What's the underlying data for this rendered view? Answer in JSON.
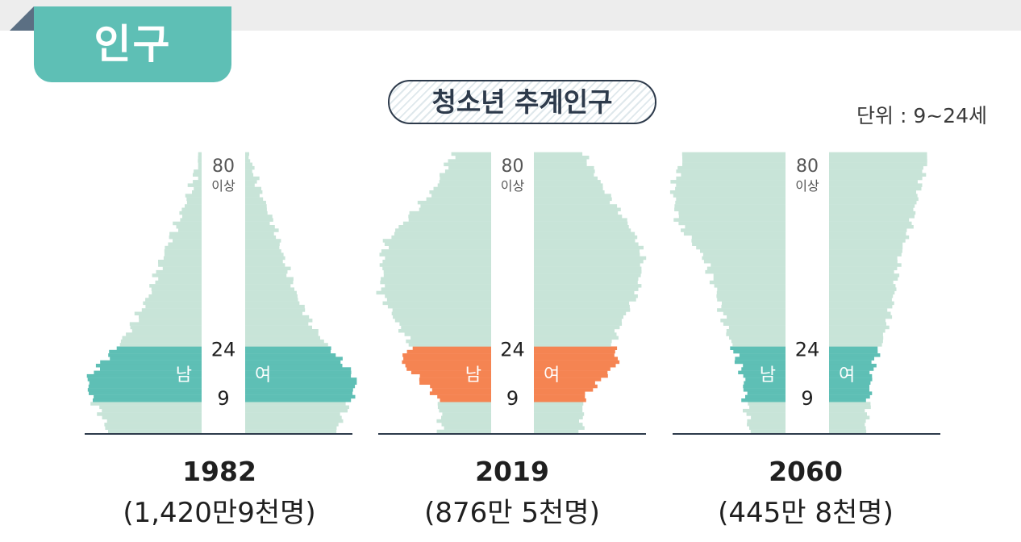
{
  "header": {
    "section_title": "인구"
  },
  "chart_title": "청소년 추계인구",
  "unit_label": "단위 : 9~24세",
  "colors": {
    "bar": "#c8e4d8",
    "highlight_teal": "#5ebfb5",
    "highlight_orange": "#f58452",
    "axis": "#2d3a4b",
    "age_text": "#555555"
  },
  "chart_data": [
    {
      "type": "bar",
      "year": "1982",
      "total_label": "(1,420만9천명)",
      "highlight_color": "#5ebfb5",
      "age_labels": {
        "top": "80",
        "top_sub": "이상",
        "upper": "24",
        "lower": "9"
      },
      "male_label": "남",
      "female_label": "여",
      "highlight_ages": [
        9,
        24
      ],
      "shape_ages": [
        0,
        5,
        10,
        15,
        20,
        25,
        30,
        40,
        50,
        60,
        70,
        80
      ],
      "shape_male": [
        0.8,
        0.86,
        0.95,
        0.98,
        0.85,
        0.71,
        0.6,
        0.44,
        0.34,
        0.21,
        0.09,
        0.01
      ],
      "shape_female": [
        0.78,
        0.84,
        0.92,
        0.95,
        0.83,
        0.7,
        0.58,
        0.43,
        0.33,
        0.24,
        0.12,
        0.03
      ]
    },
    {
      "type": "bar",
      "year": "2019",
      "total_label": "(876만 5천명)",
      "highlight_color": "#f58452",
      "age_labels": {
        "top": "80",
        "top_sub": "이상",
        "upper": "24",
        "lower": "9"
      },
      "male_label": "남",
      "female_label": "여",
      "highlight_ages": [
        9,
        24
      ],
      "shape_ages": [
        0,
        5,
        10,
        15,
        20,
        25,
        30,
        40,
        45,
        50,
        55,
        60,
        70,
        80
      ],
      "shape_male": [
        0.45,
        0.45,
        0.48,
        0.63,
        0.8,
        0.71,
        0.81,
        0.98,
        0.96,
        0.97,
        0.93,
        0.78,
        0.5,
        0.34
      ],
      "shape_female": [
        0.42,
        0.43,
        0.45,
        0.6,
        0.75,
        0.7,
        0.75,
        0.92,
        0.94,
        0.97,
        0.92,
        0.83,
        0.62,
        0.44
      ]
    },
    {
      "type": "bar",
      "year": "2060",
      "total_label": "(445만 8천명)",
      "highlight_color": "#5ebfb5",
      "age_labels": {
        "top": "80",
        "top_sub": "이상",
        "upper": "24",
        "lower": "9"
      },
      "male_label": "남",
      "female_label": "여",
      "highlight_ages": [
        9,
        24
      ],
      "shape_ages": [
        0,
        5,
        10,
        15,
        20,
        25,
        30,
        40,
        50,
        60,
        70,
        80
      ],
      "shape_male": [
        0.32,
        0.34,
        0.36,
        0.37,
        0.42,
        0.48,
        0.53,
        0.61,
        0.72,
        0.95,
        1.0,
        0.9
      ],
      "shape_female": [
        0.32,
        0.34,
        0.36,
        0.37,
        0.4,
        0.46,
        0.51,
        0.58,
        0.62,
        0.73,
        0.8,
        0.88
      ]
    }
  ]
}
